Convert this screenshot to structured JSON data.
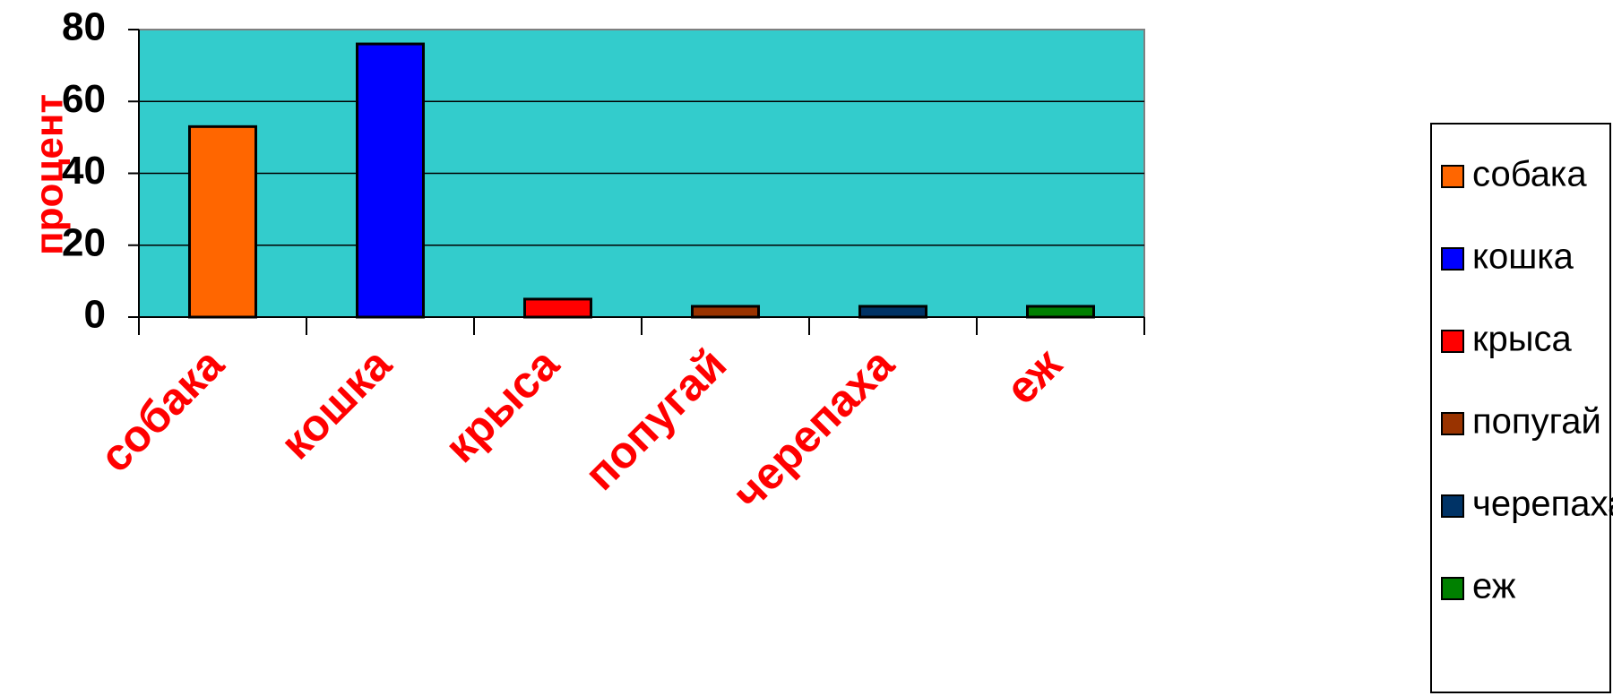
{
  "chart_data": {
    "type": "bar",
    "title": "",
    "xlabel": "",
    "ylabel": "процент",
    "categories": [
      "собака",
      "кошка",
      "крыса",
      "попугай",
      "черепаха",
      "еж"
    ],
    "series": [
      {
        "name": "собака",
        "category": "собака",
        "value": 53,
        "color": "#FF6600"
      },
      {
        "name": "кошка",
        "category": "кошка",
        "value": 76,
        "color": "#0000FF"
      },
      {
        "name": "крыса",
        "category": "крыса",
        "value": 5,
        "color": "#FF0000"
      },
      {
        "name": "попугай",
        "category": "попугай",
        "value": 3,
        "color": "#993300"
      },
      {
        "name": "черепаха",
        "category": "черепаха",
        "value": 3,
        "color": "#003366"
      },
      {
        "name": "еж",
        "category": "еж",
        "value": 3,
        "color": "#008000"
      }
    ],
    "ylim": [
      0,
      80
    ],
    "yticks": [
      0,
      20,
      40,
      60,
      80
    ],
    "grid": true,
    "legend": "right",
    "colors": {
      "plot_background": "#33CCCC",
      "label_color": "#FF0000"
    }
  }
}
